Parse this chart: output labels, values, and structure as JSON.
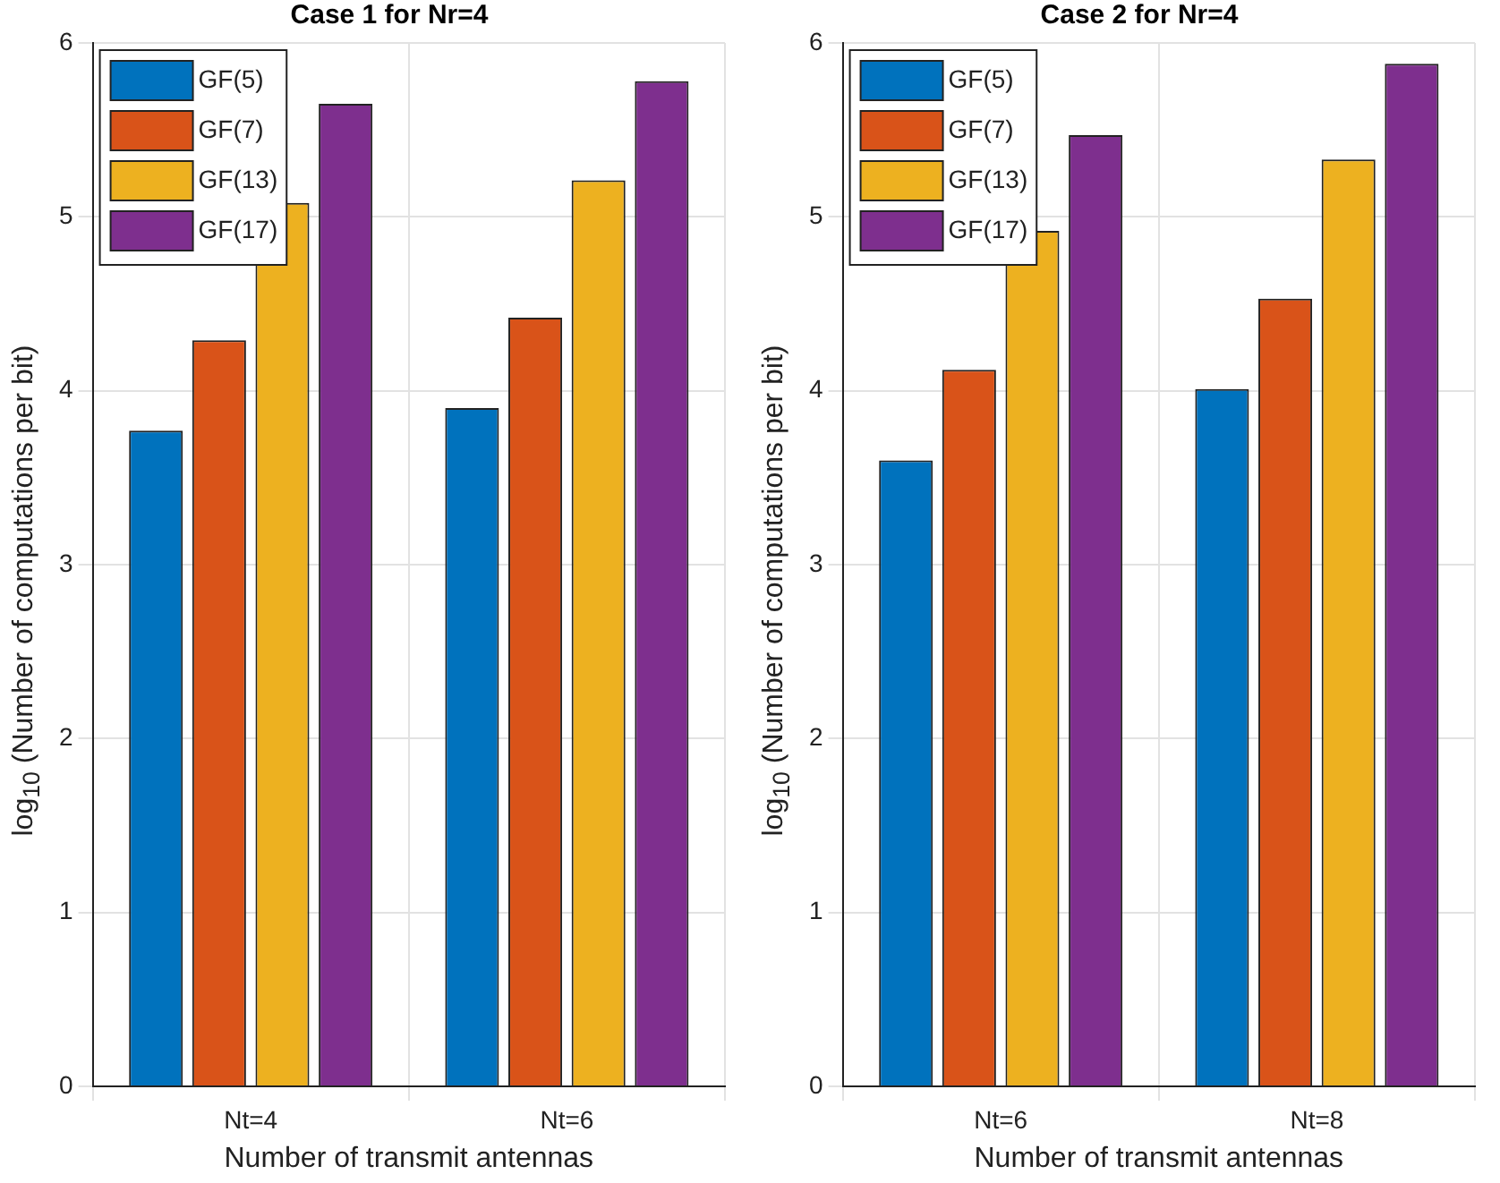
{
  "chart_data": [
    {
      "type": "bar",
      "title": "Case 1 for Nr=4",
      "xlabel": "Number of transmit antennas",
      "ylabel": "log$_{10}$ (Number of computations per bit)",
      "categories": [
        "Nt=4",
        "Nt=6"
      ],
      "series": [
        {
          "name": "GF(5)",
          "color": "#0072bd",
          "values": [
            3.77,
            3.9
          ]
        },
        {
          "name": "GF(7)",
          "color": "#d95319",
          "values": [
            4.29,
            4.42
          ]
        },
        {
          "name": "GF(13)",
          "color": "#edb120",
          "values": [
            5.08,
            5.21
          ]
        },
        {
          "name": "GF(17)",
          "color": "#7e2f8e",
          "values": [
            5.65,
            5.78
          ]
        }
      ],
      "ylim": [
        0,
        6
      ],
      "yticks": [
        0,
        1,
        2,
        3,
        4,
        5,
        6
      ],
      "grid": true,
      "legend": "top left"
    },
    {
      "type": "bar",
      "title": "Case 2 for Nr=4",
      "xlabel": "Number of transmit antennas",
      "ylabel": "log$_{10}$ (Number of computations per bit)",
      "categories": [
        "Nt=6",
        "Nt=8"
      ],
      "series": [
        {
          "name": "GF(5)",
          "color": "#0072bd",
          "values": [
            3.6,
            4.01
          ]
        },
        {
          "name": "GF(7)",
          "color": "#d95319",
          "values": [
            4.12,
            4.53
          ]
        },
        {
          "name": "GF(13)",
          "color": "#edb120",
          "values": [
            4.92,
            5.33
          ]
        },
        {
          "name": "GF(17)",
          "color": "#7e2f8e",
          "values": [
            5.47,
            5.88
          ]
        }
      ],
      "ylim": [
        0,
        6
      ],
      "yticks": [
        0,
        1,
        2,
        3,
        4,
        5,
        6
      ],
      "grid": true,
      "legend": "top left"
    }
  ]
}
